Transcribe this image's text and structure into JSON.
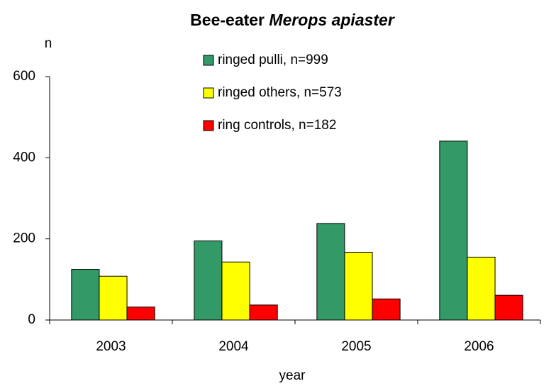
{
  "chart_data": {
    "type": "bar",
    "title": [
      "Bee-eater",
      "Merops apiaster"
    ],
    "y_label": "n",
    "x_label": "year",
    "categories": [
      "2003",
      "2004",
      "2005",
      "2006"
    ],
    "series": [
      {
        "name": "ringed pulli, n=999",
        "color": "#339966",
        "values": [
          125,
          195,
          238,
          441
        ]
      },
      {
        "name": "ringed others, n=573",
        "color": "#ffff00",
        "values": [
          108,
          143,
          167,
          155
        ]
      },
      {
        "name": "ring controls, n=182",
        "color": "#ff0000",
        "values": [
          32,
          37,
          52,
          61
        ]
      }
    ],
    "ylim": [
      0,
      600
    ],
    "yticks": [
      0,
      200,
      400,
      600
    ],
    "grid": false,
    "legend": "top"
  }
}
